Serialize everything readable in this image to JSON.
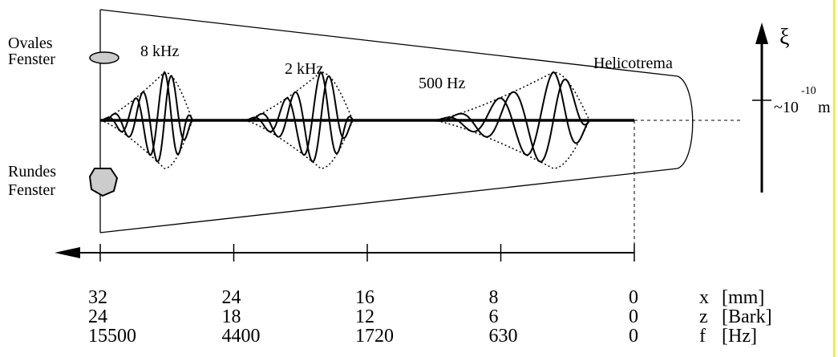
{
  "windows": {
    "oval": {
      "line1": "Ovales",
      "line2": "Fenster"
    },
    "round": {
      "line1": "Rundes",
      "line2": "Fenster"
    }
  },
  "waves": [
    {
      "label": "8 kHz"
    },
    {
      "label": "2 kHz"
    },
    {
      "label": "500 Hz"
    }
  ],
  "helicotrema": "Helicotrema",
  "displacement": {
    "symbol": "ξ",
    "magnitude": {
      "prefix": "~10",
      "exponent": "-10",
      "unit": "m"
    }
  },
  "scale": [
    {
      "symbol": "x",
      "unit": "[mm]",
      "values": [
        32,
        24,
        16,
        8,
        0
      ]
    },
    {
      "symbol": "z",
      "unit": "[Bark]",
      "values": [
        24,
        18,
        12,
        6,
        0
      ]
    },
    {
      "symbol": "f",
      "unit": "[Hz]",
      "values": [
        15500,
        4400,
        1720,
        630,
        0
      ]
    }
  ]
}
